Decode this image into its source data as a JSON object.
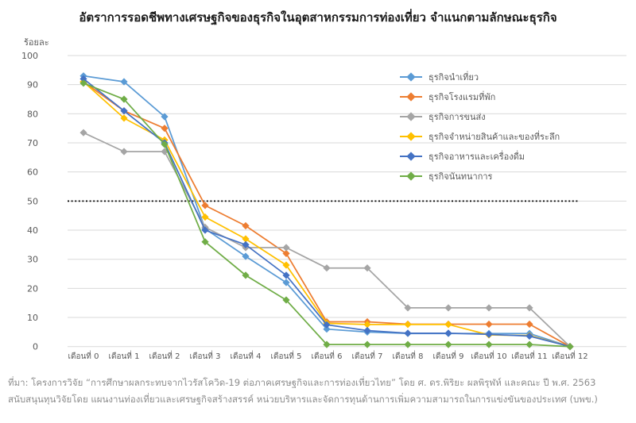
{
  "title": "อัตราการรอดชีพทางเศรษฐกิจของธุรกิจในอุตสาหกรรมการท่องเที่ยว จำแนกตามลักษณะธุรกิจ",
  "y_axis_unit": "ร้อยละ",
  "source": {
    "line1": "ที่มา: โครงการวิจัย “การศึกษาผลกระทบจากไวรัสโควิด-19 ต่อภาคเศรษฐกิจและการท่องเที่ยวไทย” โดย ศ. ดร.พิริยะ ผลพิรุฬห์ และคณะ ปี พ.ศ. 2563",
    "line2": "สนับสนุนทุนวิจัยโดย แผนงานท่องเที่ยวและเศรษฐกิจสร้างสรรค์ หน่วยบริหารและจัดการทุนด้านการเพิ่มความสามารถในการแข่งขันของประเทศ (บพข.)"
  },
  "chart_data": {
    "type": "line",
    "marker": "diamond",
    "grid": true,
    "legend_position": "inside-right",
    "xlabel": "",
    "ylabel": "ร้อยละ",
    "ylim": [
      0,
      100
    ],
    "ytick_step": 10,
    "reference_line": {
      "value": 50,
      "style": "dotted",
      "color": "#000000"
    },
    "gridline_color": "#d9d9d9",
    "categories": [
      "เดือนที่ 0",
      "เดือนที่ 1",
      "เดือนที่ 2",
      "เดือนที่ 3",
      "เดือนที่ 4",
      "เดือนที่ 5",
      "เดือนที่ 6",
      "เดือนที่ 7",
      "เดือนที่ 8",
      "เดือนที่ 9",
      "เดือนที่ 10",
      "เดือนที่ 11",
      "เดือนที่ 12"
    ],
    "series": [
      {
        "name": "ธุรกิจนำเที่ยว",
        "color": "#5B9BD5",
        "values": [
          93,
          91,
          79,
          40.5,
          31,
          22,
          6,
          5,
          4.5,
          4.5,
          4.5,
          4.5,
          0
        ]
      },
      {
        "name": "ธุรกิจโรงแรมที่พัก",
        "color": "#ED7D31",
        "values": [
          91,
          81,
          75,
          48.5,
          41.5,
          32,
          8.5,
          8.5,
          7.7,
          7.7,
          7.7,
          7.7,
          0
        ]
      },
      {
        "name": "ธุรกิจการขนส่ง",
        "color": "#A5A5A5",
        "values": [
          73.5,
          67,
          67,
          41,
          34,
          34,
          27,
          27,
          13.3,
          13.3,
          13.3,
          13.3,
          0
        ]
      },
      {
        "name": "ธุรกิจจำหน่ายสินค้าและของที่ระลึก",
        "color": "#FFC000",
        "values": [
          91,
          78.5,
          71,
          44.5,
          37,
          28,
          8,
          7.6,
          7.6,
          7.6,
          4,
          3.8,
          0
        ]
      },
      {
        "name": "ธุรกิจอาหารและเครื่องดื่ม",
        "color": "#4472C4",
        "values": [
          92,
          81,
          70,
          40,
          35,
          24.5,
          7.5,
          5.5,
          4.6,
          4.6,
          4.2,
          3.6,
          0
        ]
      },
      {
        "name": "ธุรกิจนันทนาการ",
        "color": "#70AD47",
        "values": [
          90.5,
          85,
          69.5,
          36,
          24.5,
          16,
          0.7,
          0.7,
          0.7,
          0.7,
          0.7,
          0.7,
          0
        ]
      }
    ]
  }
}
